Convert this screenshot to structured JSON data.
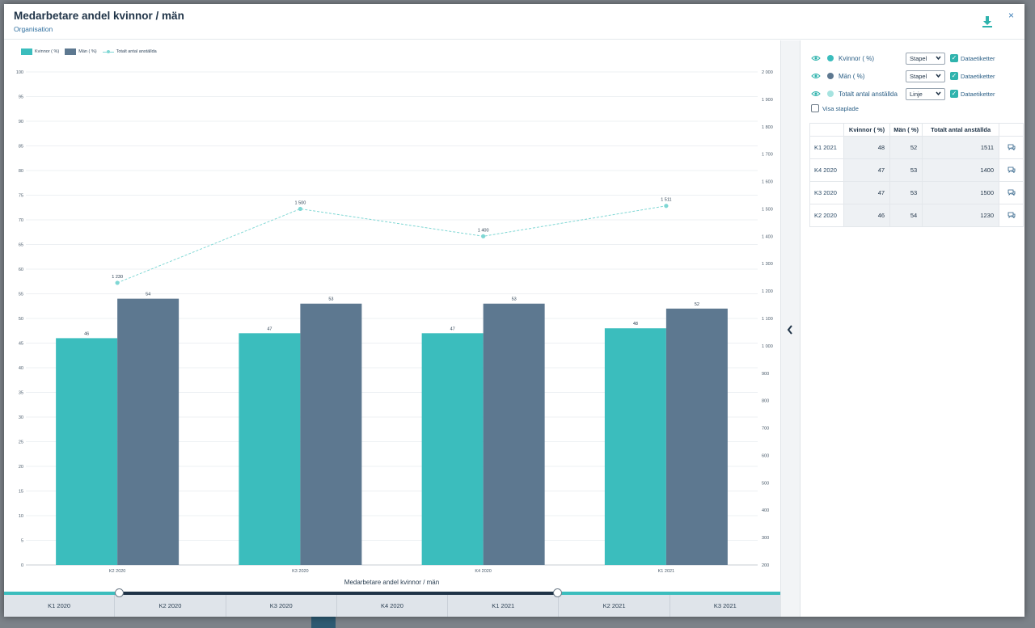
{
  "modal": {
    "title": "Medarbetare andel kvinnor / män",
    "subtitle": "Organisation",
    "download_icon": "download-icon",
    "close_label": "×"
  },
  "legend": [
    {
      "label": "Kvinnor ( %)",
      "color": "#3bbdbd",
      "kind": "bar"
    },
    {
      "label": "Män ( %)",
      "color": "#5d7890",
      "kind": "bar"
    },
    {
      "label": "Totalt antal anställda",
      "color": "#7fd7d4",
      "kind": "line"
    }
  ],
  "chart_data": {
    "type": "bar",
    "categories": [
      "K2 2020",
      "K3 2020",
      "K4 2020",
      "K1 2021"
    ],
    "series": [
      {
        "name": "Kvinnor ( %)",
        "type": "bar",
        "axis": "left",
        "color": "#3bbdbd",
        "values": [
          46,
          47,
          47,
          48
        ],
        "labels": [
          "46",
          "47",
          "47",
          "48"
        ]
      },
      {
        "name": "Män ( %)",
        "type": "bar",
        "axis": "left",
        "color": "#5d7890",
        "values": [
          54,
          53,
          53,
          52
        ],
        "labels": [
          "54",
          "53",
          "53",
          "52"
        ]
      },
      {
        "name": "Totalt antal anställda",
        "type": "line",
        "axis": "right",
        "color": "#7fd7d4",
        "values": [
          1230,
          1500,
          1400,
          1511
        ],
        "labels": [
          "1 230",
          "1 500",
          "1 400",
          "1 511"
        ]
      }
    ],
    "xlabel": "Medarbetare andel kvinnor / män",
    "ylim_left": [
      0,
      100
    ],
    "yticks_left": [
      "0",
      "5",
      "10",
      "15",
      "20",
      "25",
      "30",
      "35",
      "40",
      "45",
      "50",
      "55",
      "60",
      "65",
      "70",
      "75",
      "80",
      "85",
      "90",
      "95",
      "100"
    ],
    "ylim_right": [
      200,
      2000
    ],
    "yticks_right": [
      "200",
      "300",
      "400",
      "500",
      "600",
      "700",
      "800",
      "900",
      "1 000",
      "1 100",
      "1 200",
      "1 300",
      "1 400",
      "1 500",
      "1 600",
      "1 700",
      "1 800",
      "1 900",
      "2 000"
    ],
    "grid": true,
    "legend_position": "top-left"
  },
  "timeline": {
    "periods": [
      "K1 2020",
      "K2 2020",
      "K3 2020",
      "K4 2020",
      "K1 2021",
      "K2 2021",
      "K3 2021"
    ],
    "selected_from": "K2 2020",
    "selected_to": "K1 2021"
  },
  "panel": {
    "collapse_icon": "chevron-left-icon",
    "series_settings": [
      {
        "label": "Kvinnor ( %)",
        "color": "#3bbdbd",
        "type": "Stapel",
        "datalabels": "Dataetiketter",
        "datalabels_on": true
      },
      {
        "label": "Män ( %)",
        "color": "#5d7890",
        "type": "Stapel",
        "datalabels": "Dataetiketter",
        "datalabels_on": true
      },
      {
        "label": "Totalt antal anställda",
        "color": "#a6e3e0",
        "type": "Linje",
        "datalabels": "Dataetiketter",
        "datalabels_on": true
      }
    ],
    "stacked_label": "Visa staplade",
    "stacked_on": false,
    "table": {
      "headers": [
        "",
        "Kvinnor ( %)",
        "Män ( %)",
        "Totalt antal anställda",
        ""
      ],
      "rows": [
        {
          "period": "K1 2021",
          "kvinnor": "48",
          "man": "52",
          "totalt": "1511"
        },
        {
          "period": "K4 2020",
          "kvinnor": "47",
          "man": "53",
          "totalt": "1400"
        },
        {
          "period": "K3 2020",
          "kvinnor": "47",
          "man": "53",
          "totalt": "1500"
        },
        {
          "period": "K2 2020",
          "kvinnor": "46",
          "man": "54",
          "totalt": "1230"
        }
      ],
      "comment_icon": "comment-icon"
    }
  }
}
